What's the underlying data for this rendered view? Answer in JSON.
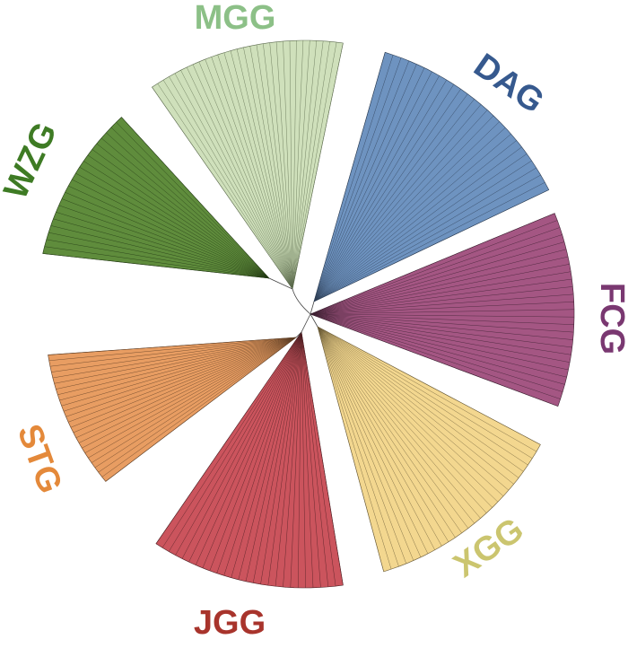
{
  "clades": [
    {
      "label": "MGG"
    },
    {
      "label": "DAG"
    },
    {
      "label": "FCG"
    },
    {
      "label": "XGG"
    },
    {
      "label": "JGG"
    },
    {
      "label": "STG"
    },
    {
      "label": "WZG"
    }
  ]
}
